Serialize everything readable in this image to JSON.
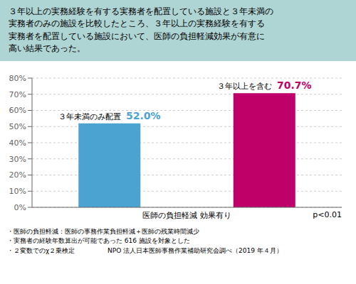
{
  "chart_data": {
    "type": "bar",
    "title": "３年以上の実務経験を有する実務者を配置している施設と３年未満の\n実務者のみの施設を比較したところ、３年以上の実務経験を有する\n実務者を配置している施設において、医師の負担軽減効果が有意に\n高い結果であった。",
    "x_label": "医師の負担軽減 効果有り",
    "categories": [
      "３年未満のみ配置",
      "３年以上を含む"
    ],
    "values": [
      52.0,
      70.7
    ],
    "value_labels": [
      "52.0%",
      "70.7%"
    ],
    "data_labels": true,
    "colors": [
      "#4aa3d0",
      "#be0068"
    ],
    "ylim": [
      0,
      80
    ],
    "yticks": [
      {
        "value": 0,
        "label": "0%"
      },
      {
        "value": 10,
        "label": "10%"
      },
      {
        "value": 20,
        "label": "20%"
      },
      {
        "value": 30,
        "label": "30%"
      },
      {
        "value": 40,
        "label": "40%"
      },
      {
        "value": 50,
        "label": "50%"
      },
      {
        "value": 60,
        "label": "60%"
      },
      {
        "value": 70,
        "label": "70%"
      },
      {
        "value": 80,
        "label": "80%"
      }
    ],
    "grid": true,
    "tick_labels": "y",
    "annotations": [
      "p<0.01",
      "・医師の負担軽減：医師の事務作業負担軽減＋医師の残業時間減少",
      "・実務者の経験年数算出が可能であった 616 施設を対象とした",
      "・２変数でのχ２乗検定                NPO 法人日本医師事務作業補助研究会調べ（2019 年４月）"
    ]
  }
}
